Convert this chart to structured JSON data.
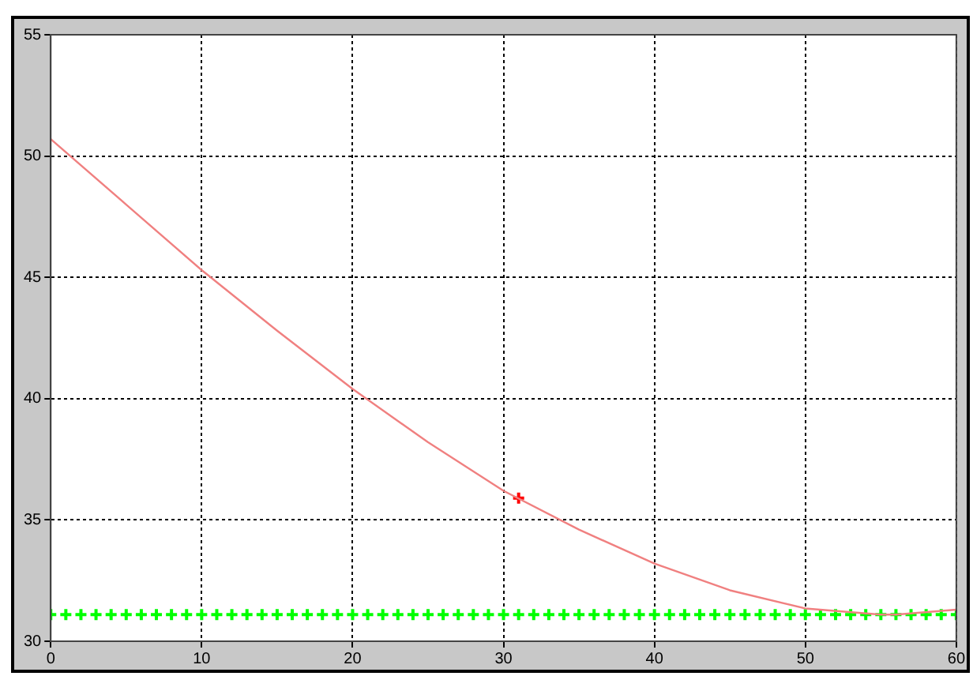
{
  "chart_data": {
    "type": "line",
    "x": [
      0,
      5,
      10,
      15,
      20,
      25,
      30,
      35,
      40,
      45,
      50,
      55,
      56,
      60
    ],
    "xlim": [
      0,
      60
    ],
    "ylim": [
      30,
      55
    ],
    "xticks": [
      0,
      10,
      20,
      30,
      40,
      50,
      60
    ],
    "yticks": [
      30,
      35,
      40,
      45,
      50,
      55
    ],
    "grid": true,
    "legend": false,
    "series": [
      {
        "color": "#f08080",
        "marker": "none",
        "values": [
          50.7,
          48,
          45.3,
          42.8,
          40.4,
          38.2,
          36.2,
          34.6,
          33.2,
          32.1,
          31.35,
          31.1,
          31.1,
          31.3
        ]
      },
      {
        "type": "scatter",
        "color": "#00ff00",
        "marker": "cross",
        "x": [
          0,
          1,
          2,
          3,
          4,
          5,
          6,
          7,
          8,
          9,
          10,
          11,
          12,
          13,
          14,
          15,
          16,
          17,
          18,
          19,
          20,
          21,
          22,
          23,
          24,
          25,
          26,
          27,
          28,
          29,
          30,
          31,
          32,
          33,
          34,
          35,
          36,
          37,
          38,
          39,
          40,
          41,
          42,
          43,
          44,
          45,
          46,
          47,
          48,
          49,
          50,
          51,
          52,
          53,
          54,
          55,
          56,
          57,
          58,
          59,
          60
        ],
        "values": [
          31.1,
          31.1,
          31.1,
          31.1,
          31.1,
          31.1,
          31.1,
          31.1,
          31.1,
          31.1,
          31.1,
          31.1,
          31.1,
          31.1,
          31.1,
          31.1,
          31.1,
          31.1,
          31.1,
          31.1,
          31.1,
          31.1,
          31.1,
          31.1,
          31.1,
          31.1,
          31.1,
          31.1,
          31.1,
          31.1,
          31.1,
          31.1,
          31.1,
          31.1,
          31.1,
          31.1,
          31.1,
          31.1,
          31.1,
          31.1,
          31.1,
          31.1,
          31.1,
          31.1,
          31.1,
          31.1,
          31.1,
          31.1,
          31.1,
          31.1,
          31.1,
          31.1,
          31.1,
          31.1,
          31.1,
          31.1,
          31.1,
          31.1,
          31.1,
          31.1,
          31.1
        ]
      },
      {
        "type": "scatter",
        "color": "#ff0000",
        "marker": "cross",
        "x": [
          31
        ],
        "values": [
          35.9
        ]
      }
    ]
  }
}
